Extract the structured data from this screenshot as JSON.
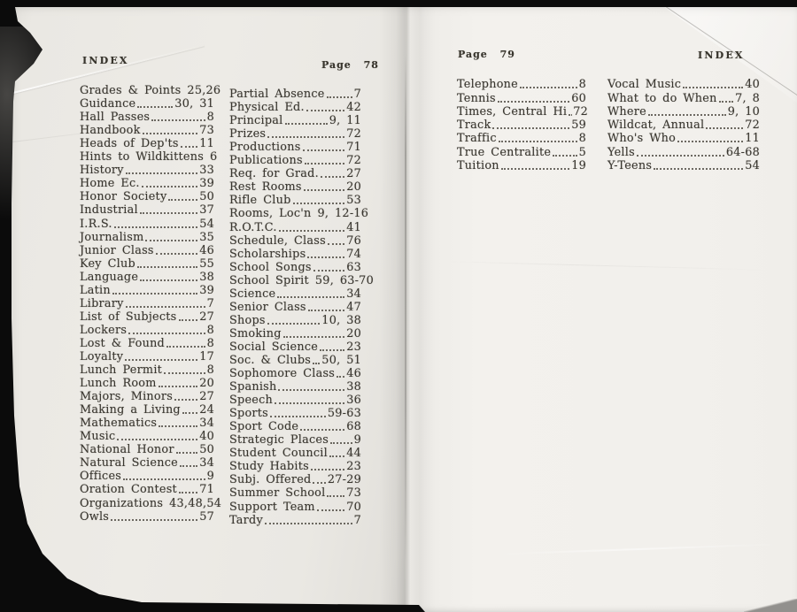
{
  "pages": {
    "left": {
      "heading": "INDEX",
      "page_label": "Page 78",
      "columns": [
        [
          {
            "label": "Grades & Points",
            "page": "25,26",
            "dots": false
          },
          {
            "label": "Guidance",
            "page": "30, 31"
          },
          {
            "label": "Hall Passes",
            "page": "8"
          },
          {
            "label": "Handbook",
            "page": "73"
          },
          {
            "label": "Heads of Dep'ts",
            "page": "11"
          },
          {
            "label": "Hints to Wildkittens",
            "page": "6",
            "dots": false
          },
          {
            "label": "History",
            "page": "33"
          },
          {
            "label": "Home Ec.",
            "page": "39"
          },
          {
            "label": "Honor Society",
            "page": "50"
          },
          {
            "label": "Industrial",
            "page": "37"
          },
          {
            "label": "I.R.S.",
            "page": "54"
          },
          {
            "label": "Journalism",
            "page": "35"
          },
          {
            "label": "Junior Class",
            "page": "46"
          },
          {
            "label": "Key Club",
            "page": "55"
          },
          {
            "label": "Language",
            "page": "38"
          },
          {
            "label": "Latin",
            "page": "39"
          },
          {
            "label": "Library",
            "page": "7"
          },
          {
            "label": "List of Subjects",
            "page": "27"
          },
          {
            "label": "Lockers",
            "page": "8"
          },
          {
            "label": "Lost & Found",
            "page": "8"
          },
          {
            "label": "Loyalty",
            "page": "17"
          },
          {
            "label": "Lunch Permit",
            "page": "8"
          },
          {
            "label": "Lunch Room",
            "page": "20"
          },
          {
            "label": "Majors, Minors",
            "page": "27"
          },
          {
            "label": "Making a Living",
            "page": "24"
          },
          {
            "label": "Mathematics",
            "page": "34"
          },
          {
            "label": "Music",
            "page": "40"
          },
          {
            "label": "National Honor",
            "page": "50"
          },
          {
            "label": "Natural Science",
            "page": "34"
          },
          {
            "label": "Offices",
            "page": "9"
          },
          {
            "label": "Oration Contest",
            "page": "71"
          },
          {
            "label": "Organizations",
            "page": "43,48,54",
            "dots": false
          },
          {
            "label": "Owls",
            "page": "57"
          }
        ],
        [
          {
            "label": "Partial Absence",
            "page": "7"
          },
          {
            "label": "Physical Ed.",
            "page": "42"
          },
          {
            "label": "Principal",
            "page": "9, 11"
          },
          {
            "label": "Prizes",
            "page": "72"
          },
          {
            "label": "Productions",
            "page": "71"
          },
          {
            "label": "Publications",
            "page": "72"
          },
          {
            "label": "Req. for Grad.",
            "page": "27"
          },
          {
            "label": "Rest Rooms",
            "page": "20"
          },
          {
            "label": "Rifle Club",
            "page": "53"
          },
          {
            "label": "Rooms, Loc'n",
            "page": "9, 12-16",
            "dots": false
          },
          {
            "label": "R.O.T.C.",
            "page": "41"
          },
          {
            "label": "Schedule, Class",
            "page": "76"
          },
          {
            "label": "Scholarships",
            "page": "74"
          },
          {
            "label": "School Songs",
            "page": "63"
          },
          {
            "label": "School Spirit",
            "page": "59, 63-70",
            "dots": false
          },
          {
            "label": "Science",
            "page": "34"
          },
          {
            "label": "Senior Class",
            "page": "47"
          },
          {
            "label": "Shops",
            "page": "10, 38"
          },
          {
            "label": "Smoking",
            "page": "20"
          },
          {
            "label": "Social Science",
            "page": "23"
          },
          {
            "label": "Soc. & Clubs",
            "page": "50, 51"
          },
          {
            "label": "Sophomore Class",
            "page": "46"
          },
          {
            "label": "Spanish",
            "page": "38"
          },
          {
            "label": "Speech",
            "page": "36"
          },
          {
            "label": "Sports",
            "page": "59-63"
          },
          {
            "label": "Sport Code",
            "page": "68"
          },
          {
            "label": "Strategic Places",
            "page": "9"
          },
          {
            "label": "Student Council",
            "page": "44"
          },
          {
            "label": "Study Habits",
            "page": "23"
          },
          {
            "label": "Subj. Offered",
            "page": "27-29"
          },
          {
            "label": "Summer School",
            "page": "73"
          },
          {
            "label": "Support Team",
            "page": "70"
          },
          {
            "label": "Tardy",
            "page": "7"
          }
        ]
      ]
    },
    "right": {
      "page_label": "Page 79",
      "heading": "INDEX",
      "columns": [
        [
          {
            "label": "Telephone",
            "page": "8"
          },
          {
            "label": "Tennis",
            "page": "60"
          },
          {
            "label": "Times, Central Hi",
            "page": "72"
          },
          {
            "label": "Track",
            "page": "59"
          },
          {
            "label": "Traffic",
            "page": "8"
          },
          {
            "label": "True Centralite",
            "page": "5"
          },
          {
            "label": "Tuition",
            "page": "19"
          }
        ],
        [
          {
            "label": "Vocal Music",
            "page": "40"
          },
          {
            "label": "What to do When",
            "page": "7, 8"
          },
          {
            "label": "Where",
            "page": "9, 10"
          },
          {
            "label": "Wildcat, Annual",
            "page": "72"
          },
          {
            "label": "Who's Who",
            "page": "11"
          },
          {
            "label": "Yells",
            "page": "64-68"
          },
          {
            "label": "Y-Teens",
            "page": "54"
          }
        ]
      ]
    }
  },
  "colors": {
    "background": "#0b0b0b",
    "paper_left": "#eae8e3",
    "paper_right": "#f2f0ec",
    "ink": "#3a3730"
  }
}
